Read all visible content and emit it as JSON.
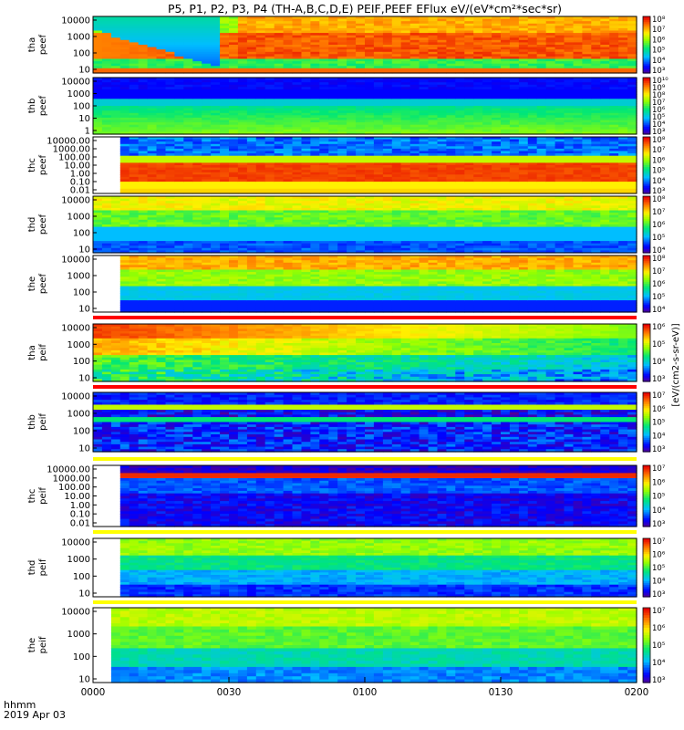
{
  "title": "P5, P1, P2, P3, P4 (TH-A,B,C,D,E) PEIF,PEEF EFlux eV/(eV*cm²*sec*sr)",
  "footer": {
    "time_unit": "hhmm",
    "date": "2019 Apr 03"
  },
  "chart_data": {
    "type": "heatmap",
    "x_ticks": [
      "0000",
      "0030",
      "0100",
      "0130",
      "0200"
    ],
    "colorbar_label": "[eV/(cm2-s-sr-eV)]",
    "panels": [
      {
        "name": "tha peef",
        "label1": "tha",
        "label2": "peef",
        "yticks": [
          "10",
          "100",
          "1000",
          "10000"
        ],
        "cbticks": [
          "10³",
          "10⁴",
          "10⁵",
          "10⁶",
          "10⁷",
          "10⁸"
        ],
        "style": "tha_peef"
      },
      {
        "name": "thb peef",
        "label1": "thb",
        "label2": "peef",
        "yticks": [
          "1",
          "10",
          "100",
          "1000",
          "10000"
        ],
        "cbticks": [
          "10³",
          "10⁴",
          "10⁵",
          "10⁶",
          "10⁷",
          "10⁸",
          "10⁹",
          "10¹⁰"
        ],
        "style": "thb_peef"
      },
      {
        "name": "thc peef",
        "label1": "thc",
        "label2": "peef",
        "yticks": [
          "0.01",
          "0.10",
          "1.00",
          "10.00",
          "100.00",
          "1000.00",
          "10000.00"
        ],
        "cbticks": [
          "10³",
          "10⁴",
          "10⁵",
          "10⁶",
          "10⁷",
          "10⁸"
        ],
        "style": "thc_peef"
      },
      {
        "name": "thd peef",
        "label1": "thd",
        "label2": "peef",
        "yticks": [
          "10",
          "100",
          "1000",
          "10000"
        ],
        "cbticks": [
          "10⁴",
          "10⁵",
          "10⁶",
          "10⁷",
          "10⁸"
        ],
        "style": "thd_peef"
      },
      {
        "name": "the peef",
        "label1": "the",
        "label2": "peef",
        "yticks": [
          "10",
          "100",
          "1000",
          "10000"
        ],
        "cbticks": [
          "10⁴",
          "10⁵",
          "10⁶",
          "10⁷",
          "10⁸"
        ],
        "style": "the_peef"
      },
      {
        "name": "tha peif",
        "label1": "tha",
        "label2": "peif",
        "yticks": [
          "10",
          "100",
          "1000",
          "10000"
        ],
        "cbticks": [
          "10³",
          "10⁴",
          "10⁵",
          "10⁶"
        ],
        "style": "tha_peif"
      },
      {
        "name": "thb peif",
        "label1": "thb",
        "label2": "peif",
        "yticks": [
          "10",
          "100",
          "1000",
          "10000"
        ],
        "cbticks": [
          "10³",
          "10⁴",
          "10⁵",
          "10⁶",
          "10⁷"
        ],
        "style": "thb_peif"
      },
      {
        "name": "thc peif",
        "label1": "thc",
        "label2": "peif",
        "yticks": [
          "0.01",
          "0.10",
          "1.00",
          "10.00",
          "100.00",
          "1000.00",
          "10000.00"
        ],
        "cbticks": [
          "10³",
          "10⁴",
          "10⁵",
          "10⁶",
          "10⁷"
        ],
        "style": "thc_peif"
      },
      {
        "name": "thd peif",
        "label1": "thd",
        "label2": "peif",
        "yticks": [
          "10",
          "100",
          "1000",
          "10000"
        ],
        "cbticks": [
          "10³",
          "10⁴",
          "10⁵",
          "10⁶",
          "10⁷"
        ],
        "style": "thd_peif"
      },
      {
        "name": "the peif",
        "label1": "the",
        "label2": "peif",
        "yticks": [
          "10",
          "100",
          "1000",
          "10000"
        ],
        "cbticks": [
          "10³",
          "10⁴",
          "10⁵",
          "10⁶",
          "10⁷"
        ],
        "style": "the_peif"
      }
    ]
  }
}
